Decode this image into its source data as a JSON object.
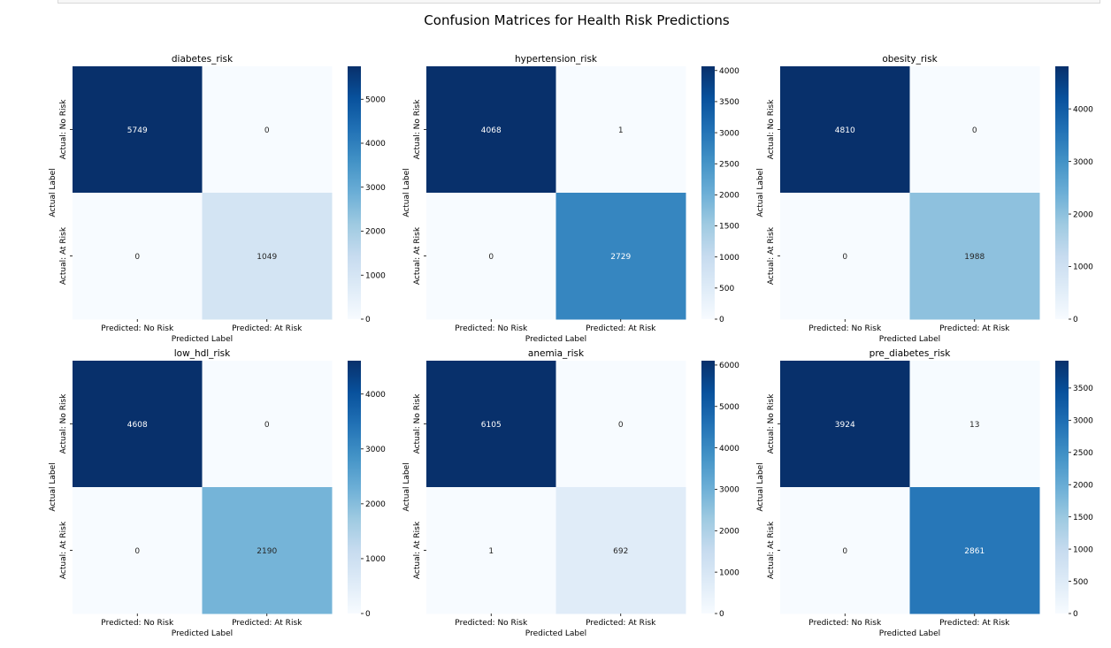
{
  "figure": {
    "title": "Confusion Matrices for Health Risk Predictions"
  },
  "colormap": [
    "#f7fbff",
    "#deebf7",
    "#c6dbef",
    "#9ecae1",
    "#6baed6",
    "#4292c6",
    "#2171b5",
    "#08519c",
    "#08306b"
  ],
  "chart_data": [
    {
      "type": "heatmap",
      "title": "diabetes_risk",
      "xlabel": "Predicted Label",
      "ylabel": "Actual Label",
      "x_categories": [
        "Predicted: No Risk",
        "Predicted: At Risk"
      ],
      "y_categories": [
        "Actual: No Risk",
        "Actual: At Risk"
      ],
      "matrix": [
        [
          5749,
          0
        ],
        [
          0,
          1049
        ]
      ],
      "colorbar_range": [
        0,
        5749
      ],
      "colorbar_ticks": [
        0,
        1000,
        2000,
        3000,
        4000,
        5000
      ]
    },
    {
      "type": "heatmap",
      "title": "hypertension_risk",
      "xlabel": "Predicted Label",
      "ylabel": "Actual Label",
      "x_categories": [
        "Predicted: No Risk",
        "Predicted: At Risk"
      ],
      "y_categories": [
        "Actual: No Risk",
        "Actual: At Risk"
      ],
      "matrix": [
        [
          4068,
          1
        ],
        [
          0,
          2729
        ]
      ],
      "colorbar_range": [
        0,
        4068
      ],
      "colorbar_ticks": [
        0,
        500,
        1000,
        1500,
        2000,
        2500,
        3000,
        3500,
        4000
      ]
    },
    {
      "type": "heatmap",
      "title": "obesity_risk",
      "xlabel": "Predicted Label",
      "ylabel": "Actual Label",
      "x_categories": [
        "Predicted: No Risk",
        "Predicted: At Risk"
      ],
      "y_categories": [
        "Actual: No Risk",
        "Actual: At Risk"
      ],
      "matrix": [
        [
          4810,
          0
        ],
        [
          0,
          1988
        ]
      ],
      "colorbar_range": [
        0,
        4810
      ],
      "colorbar_ticks": [
        0,
        1000,
        2000,
        3000,
        4000
      ]
    },
    {
      "type": "heatmap",
      "title": "low_hdl_risk",
      "xlabel": "Predicted Label",
      "ylabel": "Actual Label",
      "x_categories": [
        "Predicted: No Risk",
        "Predicted: At Risk"
      ],
      "y_categories": [
        "Actual: No Risk",
        "Actual: At Risk"
      ],
      "matrix": [
        [
          4608,
          0
        ],
        [
          0,
          2190
        ]
      ],
      "colorbar_range": [
        0,
        4608
      ],
      "colorbar_ticks": [
        0,
        1000,
        2000,
        3000,
        4000
      ]
    },
    {
      "type": "heatmap",
      "title": "anemia_risk",
      "xlabel": "Predicted Label",
      "ylabel": "Actual Label",
      "x_categories": [
        "Predicted: No Risk",
        "Predicted: At Risk"
      ],
      "y_categories": [
        "Actual: No Risk",
        "Actual: At Risk"
      ],
      "matrix": [
        [
          6105,
          0
        ],
        [
          1,
          692
        ]
      ],
      "colorbar_range": [
        0,
        6105
      ],
      "colorbar_ticks": [
        0,
        1000,
        2000,
        3000,
        4000,
        5000,
        6000
      ]
    },
    {
      "type": "heatmap",
      "title": "pre_diabetes_risk",
      "xlabel": "Predicted Label",
      "ylabel": "Actual Label",
      "x_categories": [
        "Predicted: No Risk",
        "Predicted: At Risk"
      ],
      "y_categories": [
        "Actual: No Risk",
        "Actual: At Risk"
      ],
      "matrix": [
        [
          3924,
          13
        ],
        [
          0,
          2861
        ]
      ],
      "colorbar_range": [
        0,
        3924
      ],
      "colorbar_ticks": [
        0,
        500,
        1000,
        1500,
        2000,
        2500,
        3000,
        3500
      ]
    }
  ]
}
